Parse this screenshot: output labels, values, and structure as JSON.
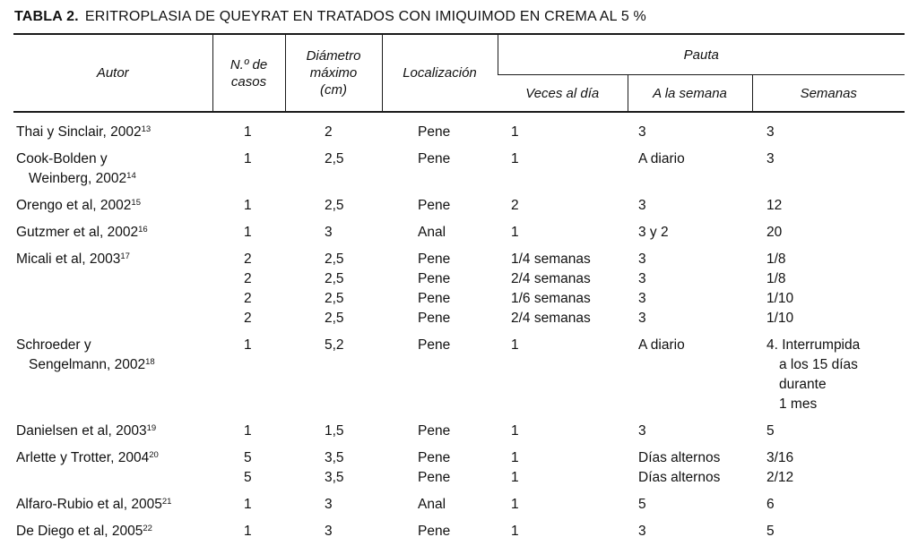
{
  "colors": {
    "background": "#ffffff",
    "text": "#111111",
    "rule": "#1a1a1a"
  },
  "title": {
    "label": "TABLA 2.",
    "text": "ERITROPLASIA DE QUEYRAT EN TRATADOS CON IMIQUIMOD EN CREMA AL 5 %"
  },
  "table": {
    "headers": {
      "autor": "Autor",
      "casos": "N.º de\ncasos",
      "diametro": "Diámetro\nmáximo\n(cm)",
      "localizacion": "Localización",
      "pauta": "Pauta",
      "veces": "Veces al día",
      "semana": "A la semana",
      "semanas": "Semanas"
    },
    "rows": [
      {
        "author": [
          {
            "text": "Thai y Sinclair, 2002",
            "sup": "13"
          }
        ],
        "casos": [
          {
            "text": "1"
          }
        ],
        "diametro": [
          {
            "text": "2"
          }
        ],
        "localizacion": [
          {
            "text": "Pene"
          }
        ],
        "veces": [
          {
            "text": "1"
          }
        ],
        "a_la_semana": [
          {
            "text": "3"
          }
        ],
        "semanas": [
          {
            "text": "3"
          }
        ]
      },
      {
        "author": [
          {
            "text": "Cook-Bolden y"
          },
          {
            "text": "Weinberg, 2002",
            "sup": "14",
            "indent": true
          }
        ],
        "casos": [
          {
            "text": "1"
          }
        ],
        "diametro": [
          {
            "text": "2,5"
          }
        ],
        "localizacion": [
          {
            "text": "Pene"
          }
        ],
        "veces": [
          {
            "text": "1"
          }
        ],
        "a_la_semana": [
          {
            "text": "A diario"
          }
        ],
        "semanas": [
          {
            "text": "3"
          }
        ]
      },
      {
        "author": [
          {
            "text": "Orengo et al, 2002",
            "sup": "15"
          }
        ],
        "casos": [
          {
            "text": "1"
          }
        ],
        "diametro": [
          {
            "text": "2,5"
          }
        ],
        "localizacion": [
          {
            "text": "Pene"
          }
        ],
        "veces": [
          {
            "text": "2"
          }
        ],
        "a_la_semana": [
          {
            "text": "3"
          }
        ],
        "semanas": [
          {
            "text": "12"
          }
        ]
      },
      {
        "author": [
          {
            "text": "Gutzmer et al, 2002",
            "sup": "16"
          }
        ],
        "casos": [
          {
            "text": "1"
          }
        ],
        "diametro": [
          {
            "text": "3"
          }
        ],
        "localizacion": [
          {
            "text": "Anal"
          }
        ],
        "veces": [
          {
            "text": "1"
          }
        ],
        "a_la_semana": [
          {
            "text": "3 y 2"
          }
        ],
        "semanas": [
          {
            "text": "20"
          }
        ]
      },
      {
        "author": [
          {
            "text": "Micali et al, 2003",
            "sup": "17"
          }
        ],
        "casos": [
          {
            "text": "2"
          },
          {
            "text": "2"
          },
          {
            "text": "2"
          },
          {
            "text": "2"
          }
        ],
        "diametro": [
          {
            "text": "2,5"
          },
          {
            "text": "2,5"
          },
          {
            "text": "2,5"
          },
          {
            "text": "2,5"
          }
        ],
        "localizacion": [
          {
            "text": "Pene"
          },
          {
            "text": "Pene"
          },
          {
            "text": "Pene"
          },
          {
            "text": "Pene"
          }
        ],
        "veces": [
          {
            "text": "1/4 semanas"
          },
          {
            "text": "2/4 semanas"
          },
          {
            "text": "1/6 semanas"
          },
          {
            "text": "2/4 semanas"
          }
        ],
        "a_la_semana": [
          {
            "text": "3"
          },
          {
            "text": "3"
          },
          {
            "text": "3"
          },
          {
            "text": "3"
          }
        ],
        "semanas": [
          {
            "text": "1/8"
          },
          {
            "text": "1/8"
          },
          {
            "text": "1/10"
          },
          {
            "text": "1/10"
          }
        ]
      },
      {
        "author": [
          {
            "text": "Schroeder y"
          },
          {
            "text": "Sengelmann, 2002",
            "sup": "18",
            "indent": true
          }
        ],
        "casos": [
          {
            "text": "1"
          }
        ],
        "diametro": [
          {
            "text": "5,2"
          }
        ],
        "localizacion": [
          {
            "text": "Pene"
          }
        ],
        "veces": [
          {
            "text": "1"
          }
        ],
        "a_la_semana": [
          {
            "text": "A diario"
          }
        ],
        "semanas": [
          {
            "text": "4. Interrumpida"
          },
          {
            "text": "a los 15 días",
            "indent": true
          },
          {
            "text": "durante",
            "indent": true
          },
          {
            "text": "1 mes",
            "indent": true
          }
        ]
      },
      {
        "author": [
          {
            "text": "Danielsen et al, 2003",
            "sup": "19"
          }
        ],
        "casos": [
          {
            "text": "1"
          }
        ],
        "diametro": [
          {
            "text": "1,5"
          }
        ],
        "localizacion": [
          {
            "text": "Pene"
          }
        ],
        "veces": [
          {
            "text": "1"
          }
        ],
        "a_la_semana": [
          {
            "text": "3"
          }
        ],
        "semanas": [
          {
            "text": "5"
          }
        ]
      },
      {
        "author": [
          {
            "text": "Arlette y Trotter, 2004",
            "sup": "20"
          }
        ],
        "casos": [
          {
            "text": "5"
          },
          {
            "text": "5"
          }
        ],
        "diametro": [
          {
            "text": "3,5"
          },
          {
            "text": "3,5"
          }
        ],
        "localizacion": [
          {
            "text": "Pene"
          },
          {
            "text": "Pene"
          }
        ],
        "veces": [
          {
            "text": "1"
          },
          {
            "text": "1"
          }
        ],
        "a_la_semana": [
          {
            "text": "Días alternos"
          },
          {
            "text": "Días alternos"
          }
        ],
        "semanas": [
          {
            "text": "3/16"
          },
          {
            "text": "2/12"
          }
        ]
      },
      {
        "author": [
          {
            "text": "Alfaro-Rubio et al, 2005",
            "sup": "21"
          }
        ],
        "casos": [
          {
            "text": "1"
          }
        ],
        "diametro": [
          {
            "text": "3"
          }
        ],
        "localizacion": [
          {
            "text": "Anal"
          }
        ],
        "veces": [
          {
            "text": "1"
          }
        ],
        "a_la_semana": [
          {
            "text": "5"
          }
        ],
        "semanas": [
          {
            "text": "6"
          }
        ]
      },
      {
        "author": [
          {
            "text": "De Diego et al, 2005",
            "sup": "22"
          }
        ],
        "casos": [
          {
            "text": "1"
          }
        ],
        "diametro": [
          {
            "text": "3"
          }
        ],
        "localizacion": [
          {
            "text": "Pene"
          }
        ],
        "veces": [
          {
            "text": "1"
          }
        ],
        "a_la_semana": [
          {
            "text": "3"
          }
        ],
        "semanas": [
          {
            "text": "5"
          }
        ]
      }
    ]
  }
}
